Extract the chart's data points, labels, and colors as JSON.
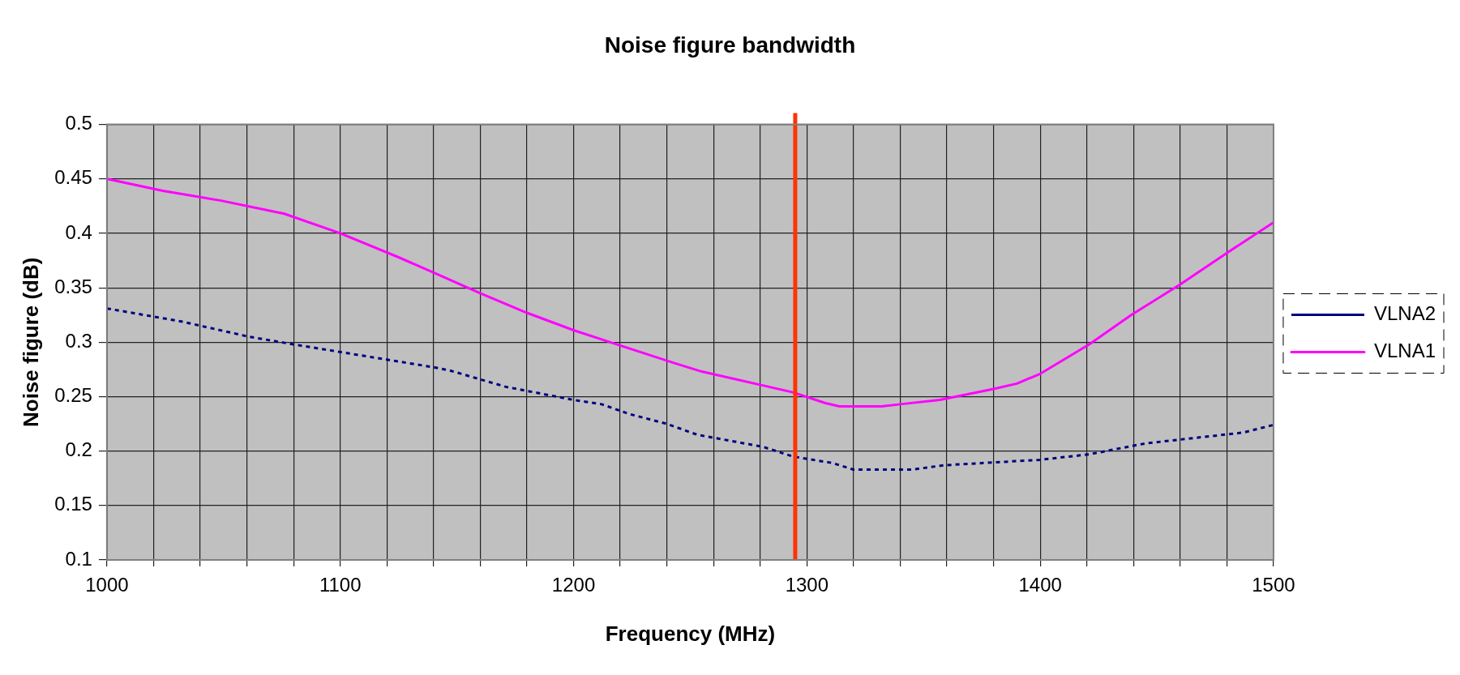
{
  "chart_data": {
    "type": "line",
    "title": "Noise figure bandwidth",
    "xlabel": "Frequency (MHz)",
    "ylabel": "Noise figure (dB)",
    "xlim": [
      1000,
      1500
    ],
    "xticks": [
      1000,
      {
        "value": 1020,
        "label": null
      },
      {
        "value": 1040,
        "label": null
      },
      {
        "value": 1060,
        "label": null
      },
      {
        "value": 1080,
        "label": null
      },
      1100,
      {
        "value": 1120,
        "label": null
      },
      {
        "value": 1140,
        "label": null
      },
      {
        "value": 1160,
        "label": null
      },
      {
        "value": 1180,
        "label": null
      },
      1200,
      {
        "value": 1220,
        "label": null
      },
      {
        "value": 1240,
        "label": null
      },
      {
        "value": 1260,
        "label": null
      },
      {
        "value": 1280,
        "label": null
      },
      1300,
      {
        "value": 1320,
        "label": null
      },
      {
        "value": 1340,
        "label": null
      },
      {
        "value": 1360,
        "label": null
      },
      {
        "value": 1380,
        "label": null
      },
      1400,
      {
        "value": 1420,
        "label": null
      },
      {
        "value": 1440,
        "label": null
      },
      {
        "value": 1460,
        "label": null
      },
      {
        "value": 1480,
        "label": null
      },
      1500
    ],
    "ylim": [
      0.1,
      0.5
    ],
    "yticks": [
      0.1,
      0.15,
      0.2,
      0.25,
      0.3,
      0.35,
      0.4,
      0.45,
      0.5
    ],
    "grid": true,
    "legend": "right",
    "marker": "none",
    "ref_lines": [
      {
        "axis": "x",
        "value": 1295,
        "color": "#ff3300"
      }
    ],
    "series": [
      {
        "name": "VLNA2",
        "color": "#000080",
        "line_style": "dotted",
        "x": [
          1000,
          1032,
          1061,
          1080,
          1100,
          1140,
          1147,
          1171,
          1200,
          1212,
          1224,
          1240,
          1253,
          1281,
          1294,
          1311,
          1320,
          1345,
          1359,
          1400,
          1421,
          1445,
          1487,
          1500
        ],
        "values": [
          0.331,
          0.319,
          0.305,
          0.298,
          0.291,
          0.277,
          0.274,
          0.259,
          0.247,
          0.243,
          0.234,
          0.225,
          0.215,
          0.204,
          0.195,
          0.189,
          0.183,
          0.183,
          0.187,
          0.192,
          0.197,
          0.207,
          0.217,
          0.224
        ]
      },
      {
        "name": "VLNA1",
        "color": "#ff00ff",
        "line_style": "solid",
        "x": [
          1000,
          1024,
          1049,
          1076,
          1100,
          1125,
          1140,
          1160,
          1180,
          1200,
          1220,
          1243,
          1255,
          1294,
          1308,
          1314,
          1332,
          1340,
          1357,
          1380,
          1390,
          1400,
          1421,
          1439,
          1460,
          1480,
          1500
        ],
        "values": [
          0.45,
          0.439,
          0.43,
          0.418,
          0.4,
          0.378,
          0.364,
          0.345,
          0.327,
          0.311,
          0.297,
          0.281,
          0.273,
          0.254,
          0.244,
          0.241,
          0.241,
          0.243,
          0.247,
          0.257,
          0.262,
          0.271,
          0.298,
          0.325,
          0.353,
          0.382,
          0.41
        ]
      }
    ]
  }
}
